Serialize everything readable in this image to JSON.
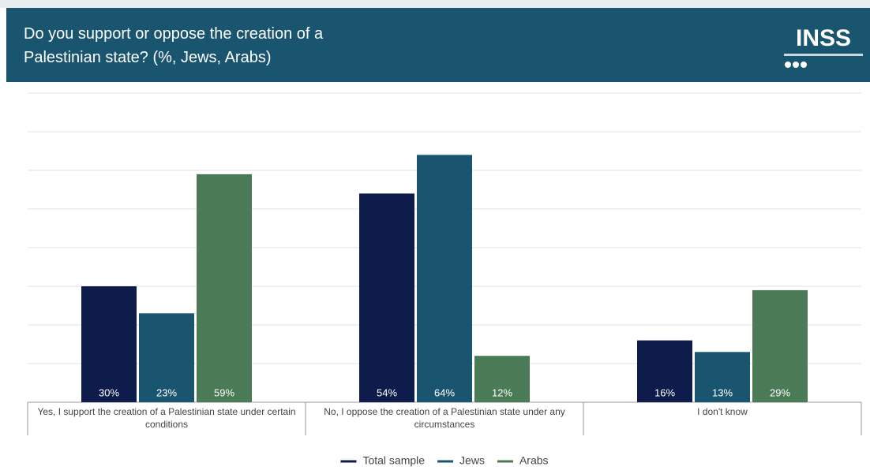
{
  "header": {
    "logo": "INSS"
  },
  "chart_data": {
    "type": "bar",
    "title": "Do you support or oppose the creation of a Palestinian state? (%, Jews, Arabs)",
    "categories": [
      "Yes, I support the creation of a Palestinian state under certain conditions",
      "No, I oppose the creation of a Palestinian state under any circumstances",
      "I don't know"
    ],
    "series": [
      {
        "name": "Total sample",
        "color": "#0e1c4c",
        "values": [
          30,
          54,
          16
        ],
        "value_labels": [
          "30%",
          "54%",
          "16%"
        ]
      },
      {
        "name": "Jews",
        "color": "#1a5570",
        "values": [
          23,
          64,
          13
        ],
        "value_labels": [
          "23%",
          "64%",
          "13%"
        ]
      },
      {
        "name": "Arabs",
        "color": "#4a7a56",
        "values": [
          59,
          12,
          29
        ],
        "value_labels": [
          "59%",
          "12%",
          "29%"
        ]
      }
    ],
    "ylim": [
      0,
      80
    ],
    "yticks": [
      0,
      10,
      20,
      30,
      40,
      50,
      60,
      70,
      80
    ],
    "grid": true,
    "legend": "bottom"
  }
}
